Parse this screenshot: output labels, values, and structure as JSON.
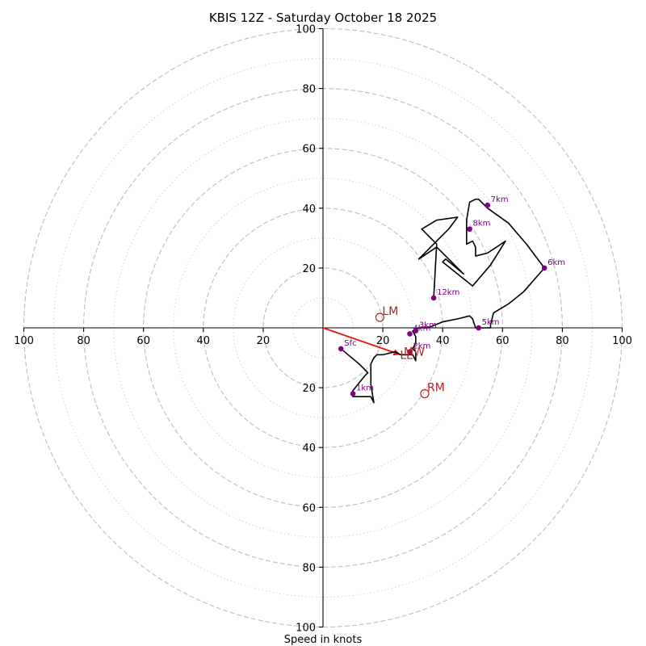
{
  "chart_data": {
    "type": "scatter",
    "title": "KBIS 12Z - Saturday October 18 2025",
    "xlabel": "Speed in knots",
    "ylabel": "",
    "xlim": [
      -100,
      100
    ],
    "ylim": [
      -100,
      100
    ],
    "ring_major": [
      20,
      40,
      60,
      80,
      100
    ],
    "ring_minor": [
      10,
      30,
      50,
      70,
      90
    ],
    "x_ticks": [
      {
        "value": -100,
        "label": "100"
      },
      {
        "value": -80,
        "label": "80"
      },
      {
        "value": -60,
        "label": "60"
      },
      {
        "value": -40,
        "label": "40"
      },
      {
        "value": -20,
        "label": "20"
      },
      {
        "value": 20,
        "label": "20"
      },
      {
        "value": 40,
        "label": "40"
      },
      {
        "value": 60,
        "label": "60"
      },
      {
        "value": 80,
        "label": "80"
      },
      {
        "value": 100,
        "label": "100"
      }
    ],
    "y_ticks": [
      {
        "value": 100,
        "label": "100"
      },
      {
        "value": 80,
        "label": "80"
      },
      {
        "value": 60,
        "label": "60"
      },
      {
        "value": 40,
        "label": "40"
      },
      {
        "value": 20,
        "label": "20"
      },
      {
        "value": -20,
        "label": "20"
      },
      {
        "value": -40,
        "label": "40"
      },
      {
        "value": -60,
        "label": "60"
      },
      {
        "value": -80,
        "label": "80"
      },
      {
        "value": -100,
        "label": "100"
      }
    ],
    "hodograph_trace": [
      [
        6,
        -7
      ],
      [
        12,
        -12
      ],
      [
        15,
        -15
      ],
      [
        14,
        -16
      ],
      [
        10,
        -21
      ],
      [
        10,
        -23
      ],
      [
        16,
        -23
      ],
      [
        17,
        -25
      ],
      [
        16,
        -19
      ],
      [
        16,
        -12
      ],
      [
        17,
        -10
      ],
      [
        18,
        -9
      ],
      [
        20,
        -9
      ],
      [
        24,
        -8
      ],
      [
        26,
        -9
      ],
      [
        28,
        -9
      ],
      [
        30,
        -9
      ],
      [
        31,
        -11
      ],
      [
        31,
        -8
      ],
      [
        30,
        -7
      ],
      [
        31,
        -5
      ],
      [
        31,
        -3
      ],
      [
        30,
        -1
      ],
      [
        32,
        0
      ],
      [
        35,
        0
      ],
      [
        40,
        2
      ],
      [
        45,
        3
      ],
      [
        49,
        4
      ],
      [
        50,
        3
      ],
      [
        51,
        0
      ],
      [
        52,
        0
      ],
      [
        56,
        0
      ],
      [
        56,
        1
      ],
      [
        57,
        5
      ],
      [
        62,
        8
      ],
      [
        67,
        12
      ],
      [
        74,
        20
      ],
      [
        68,
        28
      ],
      [
        62,
        35
      ],
      [
        55,
        40
      ],
      [
        52,
        43
      ],
      [
        51,
        43
      ],
      [
        49,
        42
      ],
      [
        48,
        36
      ],
      [
        48,
        31
      ],
      [
        48,
        28
      ],
      [
        50,
        29
      ],
      [
        51,
        27
      ],
      [
        51,
        24
      ],
      [
        55,
        25
      ],
      [
        61,
        29
      ],
      [
        56,
        21
      ],
      [
        50,
        14
      ],
      [
        40,
        22
      ],
      [
        41,
        23
      ],
      [
        47,
        18
      ],
      [
        43,
        22
      ],
      [
        38,
        27
      ],
      [
        32,
        23
      ],
      [
        36,
        27
      ],
      [
        42,
        33
      ],
      [
        45,
        37
      ],
      [
        38,
        36
      ],
      [
        33,
        33
      ],
      [
        38,
        28
      ],
      [
        37,
        10
      ]
    ],
    "height_markers": [
      {
        "label": "Sfc",
        "x": 6,
        "y": -7
      },
      {
        "label": "1km",
        "x": 10,
        "y": -22
      },
      {
        "label": "2km",
        "x": 29,
        "y": -8
      },
      {
        "label": "3km",
        "x": 31,
        "y": -1
      },
      {
        "label": "4km",
        "x": 29,
        "y": -2
      },
      {
        "label": "5km",
        "x": 52,
        "y": 0
      },
      {
        "label": "6km",
        "x": 74,
        "y": 20
      },
      {
        "label": "7km",
        "x": 55,
        "y": 41
      },
      {
        "label": "8km",
        "x": 49,
        "y": 33
      },
      {
        "label": "12km",
        "x": 37,
        "y": 10
      }
    ],
    "storm_motion": [
      {
        "label": "LM",
        "x": 19,
        "y": 3.5
      },
      {
        "label": "RM",
        "x": 34,
        "y": -22
      }
    ],
    "mean_wind": {
      "label": "MW",
      "x": 27,
      "y": -9
    },
    "bunkers_le": {
      "label": "LE",
      "x": 26,
      "y": -9
    },
    "shear_vector": {
      "from": [
        0,
        0
      ],
      "to": [
        26,
        -9
      ]
    }
  }
}
